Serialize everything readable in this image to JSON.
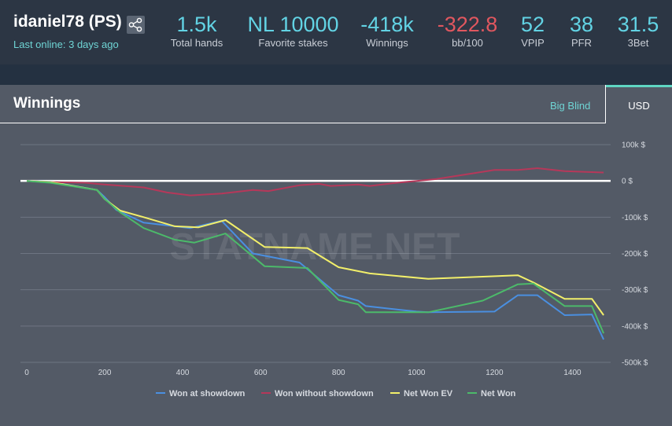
{
  "player": {
    "name": "idaniel78 (PS)",
    "last_online": "Last online: 3 days ago"
  },
  "stats": [
    {
      "value": "1.5k",
      "label": "Total hands",
      "negative": false
    },
    {
      "value": "NL 10000",
      "label": "Favorite stakes",
      "negative": false
    },
    {
      "value": "-418k",
      "label": "Winnings",
      "negative": false
    },
    {
      "value": "-322.8",
      "label": "bb/100",
      "negative": true
    },
    {
      "value": "52",
      "label": "VPIP",
      "negative": false
    },
    {
      "value": "38",
      "label": "PFR",
      "negative": false
    },
    {
      "value": "31.5",
      "label": "3Bet",
      "negative": false
    }
  ],
  "panel": {
    "title": "Winnings",
    "tab_big_blind": "Big Blind",
    "tab_usd": "USD"
  },
  "watermark": "STATNAME.NET",
  "colors": {
    "accent": "#62d3e4",
    "negative": "#e0575f",
    "tab_active": "#5fd6c2"
  },
  "chart_data": {
    "type": "line",
    "xlim": [
      0,
      1500
    ],
    "ylim": [
      -500000,
      100000
    ],
    "x_ticks": [
      {
        "value": 0,
        "label": "0"
      },
      {
        "value": 200,
        "label": "200"
      },
      {
        "value": 400,
        "label": "400"
      },
      {
        "value": 600,
        "label": "600"
      },
      {
        "value": 800,
        "label": "800"
      },
      {
        "value": 1000,
        "label": "1000"
      },
      {
        "value": 1200,
        "label": "1200"
      },
      {
        "value": 1400,
        "label": "1400"
      }
    ],
    "y_ticks": [
      {
        "value": 100000,
        "label": "100k $"
      },
      {
        "value": 0,
        "label": "0 $"
      },
      {
        "value": -100000,
        "label": "-100k $"
      },
      {
        "value": -200000,
        "label": "-200k $"
      },
      {
        "value": -300000,
        "label": "-300k $"
      },
      {
        "value": -400000,
        "label": "-400k $"
      },
      {
        "value": -500000,
        "label": "-500k $"
      }
    ],
    "grid": true,
    "legend_position": "bottom",
    "series": [
      {
        "name": "Won at showdown",
        "color": "#4a8fe0",
        "points": [
          [
            0,
            0
          ],
          [
            60,
            -2000
          ],
          [
            180,
            -25000
          ],
          [
            200,
            -45000
          ],
          [
            230,
            -80000
          ],
          [
            300,
            -115000
          ],
          [
            420,
            -130000
          ],
          [
            500,
            -110000
          ],
          [
            580,
            -200000
          ],
          [
            700,
            -225000
          ],
          [
            800,
            -315000
          ],
          [
            850,
            -330000
          ],
          [
            870,
            -345000
          ],
          [
            1000,
            -360000
          ],
          [
            1030,
            -362000
          ],
          [
            1200,
            -360000
          ],
          [
            1260,
            -315000
          ],
          [
            1310,
            -315000
          ],
          [
            1380,
            -370000
          ],
          [
            1450,
            -368000
          ],
          [
            1480,
            -437000
          ]
        ]
      },
      {
        "name": "Won without showdown",
        "color": "#b6385a",
        "points": [
          [
            0,
            0
          ],
          [
            60,
            -3000
          ],
          [
            150,
            -5000
          ],
          [
            200,
            -10000
          ],
          [
            300,
            -18000
          ],
          [
            360,
            -32000
          ],
          [
            420,
            -40000
          ],
          [
            500,
            -35000
          ],
          [
            580,
            -25000
          ],
          [
            620,
            -28000
          ],
          [
            700,
            -12000
          ],
          [
            750,
            -8000
          ],
          [
            780,
            -14000
          ],
          [
            850,
            -10000
          ],
          [
            880,
            -14000
          ],
          [
            950,
            -5000
          ],
          [
            1000,
            0
          ],
          [
            1050,
            5000
          ],
          [
            1200,
            30000
          ],
          [
            1260,
            30000
          ],
          [
            1310,
            35000
          ],
          [
            1380,
            27000
          ],
          [
            1480,
            23000
          ]
        ]
      },
      {
        "name": "Net Won EV",
        "color": "#f2ef6a",
        "points": [
          [
            0,
            0
          ],
          [
            60,
            -3000
          ],
          [
            180,
            -25000
          ],
          [
            200,
            -50000
          ],
          [
            240,
            -82000
          ],
          [
            300,
            -100000
          ],
          [
            380,
            -125000
          ],
          [
            440,
            -128000
          ],
          [
            510,
            -108000
          ],
          [
            610,
            -182000
          ],
          [
            720,
            -185000
          ],
          [
            800,
            -238000
          ],
          [
            880,
            -255000
          ],
          [
            1030,
            -270000
          ],
          [
            1260,
            -260000
          ],
          [
            1300,
            -280000
          ],
          [
            1380,
            -325000
          ],
          [
            1450,
            -325000
          ],
          [
            1480,
            -370000
          ]
        ]
      },
      {
        "name": "Net Won",
        "color": "#4cba6a",
        "points": [
          [
            0,
            0
          ],
          [
            60,
            -5000
          ],
          [
            180,
            -25000
          ],
          [
            200,
            -50000
          ],
          [
            240,
            -87000
          ],
          [
            300,
            -130000
          ],
          [
            380,
            -162000
          ],
          [
            430,
            -170000
          ],
          [
            510,
            -145000
          ],
          [
            610,
            -235000
          ],
          [
            720,
            -240000
          ],
          [
            800,
            -328000
          ],
          [
            850,
            -340000
          ],
          [
            870,
            -362000
          ],
          [
            1030,
            -362000
          ],
          [
            1170,
            -330000
          ],
          [
            1260,
            -285000
          ],
          [
            1300,
            -283000
          ],
          [
            1380,
            -345000
          ],
          [
            1450,
            -345000
          ],
          [
            1480,
            -420000
          ]
        ]
      }
    ]
  }
}
